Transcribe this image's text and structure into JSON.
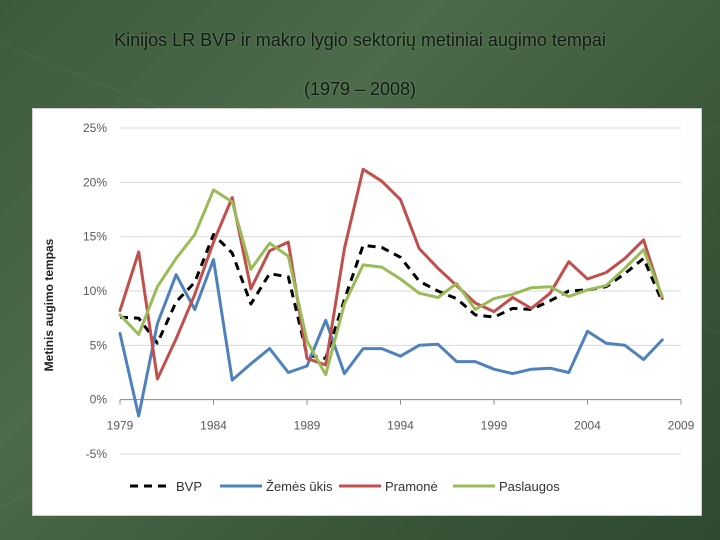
{
  "slide": {
    "title": "Kinijos LR BVP ir makro lygio sektorių metiniai augimo tempai",
    "subtitle": "(1979 – 2008)"
  },
  "chart_data": {
    "type": "line",
    "title": "Kinijos LR BVP ir makro lygio sektorių metiniai augimo tempai (1979 – 2008)",
    "xlabel": "",
    "ylabel": "Metinis augimo tempas",
    "xlim": [
      1979,
      2009
    ],
    "ylim": [
      -5,
      25
    ],
    "x_ticks": [
      "1979",
      "1984",
      "1989",
      "1994",
      "1999",
      "2004",
      "2009"
    ],
    "y_ticks": [
      "25%",
      "20%",
      "15%",
      "10%",
      "5%",
      "0%",
      "-5%"
    ],
    "y_tick_values": [
      25,
      20,
      15,
      10,
      5,
      0,
      -5
    ],
    "grid": true,
    "legend_position": "bottom",
    "x": [
      1979,
      1980,
      1981,
      1982,
      1983,
      1984,
      1985,
      1986,
      1987,
      1988,
      1989,
      1990,
      1991,
      1992,
      1993,
      1994,
      1995,
      1996,
      1997,
      1998,
      1999,
      2000,
      2001,
      2002,
      2003,
      2004,
      2005,
      2006,
      2007,
      2008
    ],
    "series": [
      {
        "name": "BVP",
        "color": "#000000",
        "style": "dashed",
        "values": [
          7.6,
          7.5,
          5.2,
          9.0,
          10.8,
          15.2,
          13.5,
          8.8,
          11.6,
          11.3,
          4.1,
          3.8,
          9.2,
          14.2,
          14.0,
          13.1,
          10.9,
          10.0,
          9.3,
          7.8,
          7.6,
          8.4,
          8.3,
          9.1,
          10.0,
          10.1,
          10.4,
          11.6,
          13.0,
          9.0
        ]
      },
      {
        "name": "Žemės ūkis",
        "color": "#4f81bd",
        "style": "solid",
        "values": [
          6.1,
          -1.5,
          7.0,
          11.5,
          8.3,
          12.9,
          1.8,
          3.3,
          4.7,
          2.5,
          3.1,
          7.3,
          2.4,
          4.7,
          4.7,
          4.0,
          5.0,
          5.1,
          3.5,
          3.5,
          2.8,
          2.4,
          2.8,
          2.9,
          2.5,
          6.3,
          5.2,
          5.0,
          3.7,
          5.5
        ]
      },
      {
        "name": "Pramonė",
        "color": "#c0504d",
        "style": "solid",
        "values": [
          8.2,
          13.6,
          1.9,
          5.6,
          9.7,
          14.5,
          18.6,
          10.2,
          13.7,
          14.5,
          3.8,
          3.2,
          13.9,
          21.2,
          20.1,
          18.4,
          13.9,
          12.1,
          10.5,
          8.9,
          8.1,
          9.4,
          8.4,
          9.8,
          12.7,
          11.1,
          11.7,
          13.0,
          14.7,
          9.3
        ]
      },
      {
        "name": "Paslaugos",
        "color": "#9bbb59",
        "style": "solid",
        "values": [
          7.8,
          6.0,
          10.4,
          13.0,
          15.2,
          19.3,
          18.2,
          12.0,
          14.4,
          13.2,
          5.4,
          2.3,
          8.8,
          12.4,
          12.2,
          11.1,
          9.8,
          9.4,
          10.7,
          8.3,
          9.3,
          9.7,
          10.3,
          10.4,
          9.5,
          10.1,
          10.5,
          12.1,
          13.8,
          9.5
        ]
      }
    ]
  }
}
